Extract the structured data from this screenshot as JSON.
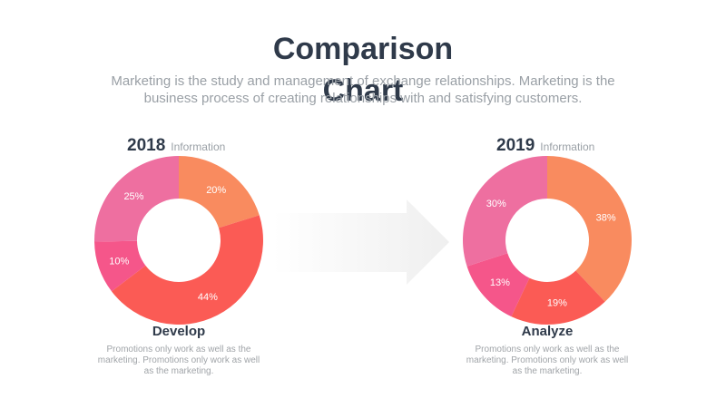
{
  "header": {
    "title_line1": "Comparison",
    "title_line2": "Chart",
    "subtitle": "Marketing is the study and management of exchange relationships. Marketing is the business process of creating relationships with and satisfying customers."
  },
  "colors": {
    "orange": "#f98b5f",
    "red": "#fb5b55",
    "magenta": "#f5568a",
    "pink": "#ee6fa0"
  },
  "chart_data": [
    {
      "type": "pie",
      "title": "2018",
      "subtitle": "Information",
      "values": [
        20,
        44,
        10,
        25
      ],
      "labels": [
        "20%",
        "44%",
        "10%",
        "25%"
      ],
      "colors": [
        "#f98b5f",
        "#fb5b55",
        "#f5568a",
        "#ee6fa0"
      ],
      "caption": "Develop",
      "description": "Promotions only work as well as the marketing. Promotions only work as well as the marketing."
    },
    {
      "type": "pie",
      "title": "2019",
      "subtitle": "Information",
      "values": [
        38,
        19,
        13,
        30
      ],
      "labels": [
        "38%",
        "19%",
        "13%",
        "30%"
      ],
      "colors": [
        "#f98b5f",
        "#fb5b55",
        "#f5568a",
        "#ee6fa0"
      ],
      "caption": "Analyze",
      "description": "Promotions only work as well as the marketing. Promotions only work as well as the marketing."
    }
  ]
}
